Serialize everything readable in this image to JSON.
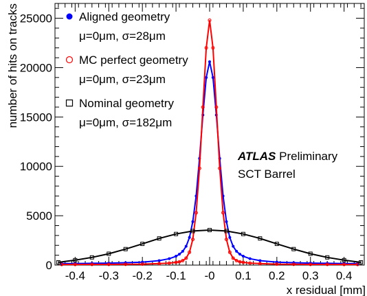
{
  "chart_data": {
    "type": "scatter",
    "xlabel": "x residual [mm]",
    "ylabel": "number of hits on tracks",
    "xlim": [
      -0.46,
      0.46
    ],
    "ylim": [
      0,
      26500
    ],
    "x_ticks": [
      "-0.4",
      "-0.3",
      "-0.2",
      "-0.1",
      "-0",
      "0.1",
      "0.2",
      "0.3",
      "0.4"
    ],
    "x_tick_values": [
      -0.4,
      -0.3,
      -0.2,
      -0.1,
      0,
      0.1,
      0.2,
      0.3,
      0.4
    ],
    "y_ticks": [
      "0",
      "5000",
      "10000",
      "15000",
      "20000",
      "25000"
    ],
    "y_tick_values": [
      0,
      5000,
      10000,
      15000,
      20000,
      25000
    ],
    "series": [
      {
        "name": "Aligned geometry",
        "stats": "μ=0μm, σ=28μm",
        "color": "#0000ff",
        "marker": "filled-circle",
        "x": [
          -0.44,
          -0.4,
          -0.35,
          -0.3,
          -0.25,
          -0.2,
          -0.15,
          -0.12,
          -0.1,
          -0.09,
          -0.08,
          -0.07,
          -0.06,
          -0.05,
          -0.04,
          -0.03,
          -0.02,
          -0.01,
          0.0,
          0.01,
          0.02,
          0.03,
          0.04,
          0.05,
          0.06,
          0.07,
          0.08,
          0.09,
          0.1,
          0.12,
          0.15,
          0.2,
          0.25,
          0.3,
          0.35,
          0.4,
          0.44
        ],
        "y": [
          150,
          160,
          180,
          200,
          240,
          300,
          450,
          650,
          900,
          1100,
          1400,
          1900,
          2800,
          4400,
          7000,
          10800,
          15200,
          19000,
          20600,
          19000,
          15200,
          10800,
          7000,
          4400,
          2800,
          1900,
          1400,
          1100,
          900,
          650,
          450,
          300,
          240,
          200,
          180,
          160,
          150
        ]
      },
      {
        "name": "MC perfect geometry",
        "stats": "μ=0μm, σ=23μm",
        "color": "#ff0000",
        "marker": "open-circle",
        "x": [
          -0.44,
          -0.4,
          -0.35,
          -0.3,
          -0.25,
          -0.2,
          -0.15,
          -0.12,
          -0.1,
          -0.09,
          -0.08,
          -0.07,
          -0.06,
          -0.05,
          -0.04,
          -0.03,
          -0.02,
          -0.01,
          0.0,
          0.01,
          0.02,
          0.03,
          0.04,
          0.05,
          0.06,
          0.07,
          0.08,
          0.09,
          0.1,
          0.12,
          0.15,
          0.2,
          0.25,
          0.3,
          0.35,
          0.4,
          0.44
        ],
        "y": [
          60,
          60,
          70,
          70,
          80,
          100,
          150,
          200,
          280,
          330,
          450,
          700,
          1300,
          2600,
          5300,
          9800,
          16000,
          22000,
          24800,
          22000,
          16000,
          9800,
          5300,
          2600,
          1300,
          700,
          450,
          330,
          280,
          200,
          150,
          100,
          80,
          70,
          70,
          60,
          60
        ]
      },
      {
        "name": "Nominal geometry",
        "stats": "μ=0μm, σ=182μm",
        "color": "#000000",
        "marker": "open-square",
        "x": [
          -0.45,
          -0.4,
          -0.35,
          -0.3,
          -0.25,
          -0.2,
          -0.15,
          -0.1,
          -0.05,
          0.0,
          0.05,
          0.1,
          0.15,
          0.2,
          0.25,
          0.3,
          0.35,
          0.4,
          0.45
        ],
        "y": [
          280,
          500,
          780,
          1150,
          1620,
          2150,
          2700,
          3150,
          3450,
          3550,
          3450,
          3150,
          2700,
          2150,
          1620,
          1150,
          780,
          500,
          280
        ]
      }
    ],
    "annotations": {
      "experiment": "ATLAS",
      "status": "Preliminary",
      "detector": "SCT Barrel"
    },
    "legend_position": "top-left",
    "grid": false
  }
}
